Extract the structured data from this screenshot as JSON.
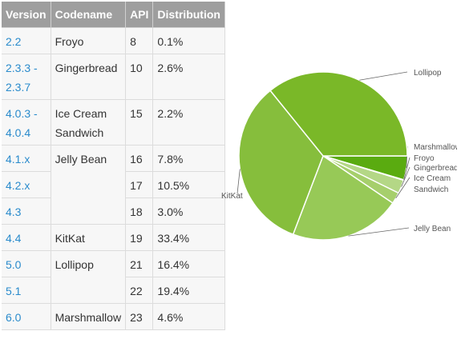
{
  "table": {
    "headers": [
      "Version",
      "Codename",
      "API",
      "Distribution"
    ],
    "rows": [
      {
        "version": "2.2",
        "codename": "Froyo",
        "api": "8",
        "distribution": "0.1%"
      },
      {
        "version": "2.3.3 -\n2.3.7",
        "codename": "Gingerbread",
        "api": "10",
        "distribution": "2.6%"
      },
      {
        "version": "4.0.3 -\n4.0.4",
        "codename": "Ice Cream\nSandwich",
        "api": "15",
        "distribution": "2.2%"
      },
      {
        "version": "4.1.x",
        "codename": "Jelly Bean",
        "api": "16",
        "distribution": "7.8%"
      },
      {
        "version": "4.2.x",
        "codename": "",
        "api": "17",
        "distribution": "10.5%"
      },
      {
        "version": "4.3",
        "codename": "",
        "api": "18",
        "distribution": "3.0%"
      },
      {
        "version": "4.4",
        "codename": "KitKat",
        "api": "19",
        "distribution": "33.4%"
      },
      {
        "version": "5.0",
        "codename": "Lollipop",
        "api": "21",
        "distribution": "16.4%"
      },
      {
        "version": "5.1",
        "codename": "",
        "api": "22",
        "distribution": "19.4%"
      },
      {
        "version": "6.0",
        "codename": "Marshmallow",
        "api": "23",
        "distribution": "4.6%"
      }
    ]
  },
  "chart_data": {
    "type": "pie",
    "slices": [
      {
        "label": "Marshmallow",
        "value": 4.6,
        "color": "#5aab10"
      },
      {
        "label": "Froyo",
        "value": 0.1,
        "color": "#c8e2a4"
      },
      {
        "label": "Gingerbread",
        "value": 2.6,
        "color": "#b4d786"
      },
      {
        "label": "Ice Cream Sandwich",
        "value": 2.2,
        "color": "#a6cf6c"
      },
      {
        "label": "Jelly Bean",
        "value": 21.3,
        "color": "#97c957"
      },
      {
        "label": "KitKat",
        "value": 33.4,
        "color": "#86be3c"
      },
      {
        "label": "Lollipop",
        "value": 35.8,
        "color": "#7ab828"
      }
    ],
    "label_color": "#555555",
    "leader_color": "#666666"
  }
}
